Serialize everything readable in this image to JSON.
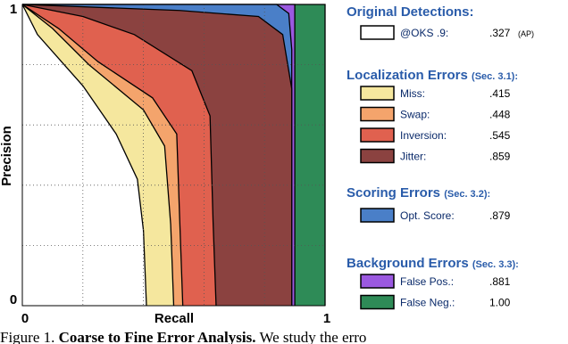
{
  "chart_data": {
    "type": "area",
    "xlabel": "Recall",
    "ylabel": "Precision",
    "xlim": [
      0,
      1
    ],
    "ylim": [
      0,
      1
    ],
    "xticks": [
      0,
      1
    ],
    "yticks": [
      0,
      1
    ],
    "grid_lines": [
      0.2,
      0.4,
      0.6,
      0.8
    ],
    "groups": [
      {
        "title": "Original Detections:",
        "series": [
          {
            "name": "@OKS .9:",
            "score": ".327",
            "score_note": "(AP)",
            "color": "#ffffff",
            "x": [
              0,
              0.05,
              0.2,
              0.31,
              0.38,
              0.4,
              0.41
            ],
            "values": [
              1,
              0.9,
              0.73,
              0.57,
              0.42,
              0.25,
              0
            ]
          }
        ]
      },
      {
        "title": "Localization Errors",
        "note": "(Sec. 3.1):",
        "series": [
          {
            "name": "Miss:",
            "score": ".415",
            "color": "#f5e79e",
            "x": [
              0,
              0.1,
              0.22,
              0.4,
              0.47,
              0.49,
              0.5
            ],
            "values": [
              1,
              0.92,
              0.8,
              0.65,
              0.53,
              0.27,
              0
            ]
          },
          {
            "name": "Swap:",
            "score": ".448",
            "color": "#f4a46c",
            "x": [
              0,
              0.12,
              0.25,
              0.43,
              0.51,
              0.52,
              0.53
            ],
            "values": [
              1,
              0.92,
              0.81,
              0.69,
              0.57,
              0.28,
              0
            ]
          },
          {
            "name": "Inversion:",
            "score": ".545",
            "color": "#e0614f",
            "x": [
              0,
              0.2,
              0.37,
              0.56,
              0.62,
              0.63,
              0.64
            ],
            "values": [
              1,
              0.96,
              0.9,
              0.78,
              0.63,
              0.28,
              0
            ]
          },
          {
            "name": "Jitter:",
            "score": ".859",
            "color": "#8b4240",
            "x": [
              0,
              0.52,
              0.78,
              0.86,
              0.89,
              0.89
            ],
            "values": [
              1,
              0.98,
              0.96,
              0.9,
              0.72,
              0
            ]
          }
        ]
      },
      {
        "title": "Scoring Errors",
        "note": "(Sec. 3.2):",
        "series": [
          {
            "name": "Opt. Score:",
            "score": ".879",
            "color": "#4a7fc8",
            "x": [
              0,
              0.84,
              0.88,
              0.89,
              0.89
            ],
            "values": [
              1,
              1,
              0.97,
              0.85,
              0
            ]
          }
        ]
      },
      {
        "title": "Background Errors",
        "note": "(Sec. 3.3):",
        "series": [
          {
            "name": "False Pos.:",
            "score": ".881",
            "color": "#9b59e0",
            "x": [
              0,
              0.9,
              0.9
            ],
            "values": [
              1,
              1,
              0
            ]
          },
          {
            "name": "False Neg.:",
            "score": "1.00",
            "color": "#2e8b57",
            "x": [
              0,
              1,
              1
            ],
            "values": [
              1,
              1,
              0
            ]
          }
        ]
      }
    ]
  },
  "caption": {
    "label": "Figure 1.",
    "bold": "Coarse to Fine Error Analysis.",
    "text": "We study the erro"
  }
}
